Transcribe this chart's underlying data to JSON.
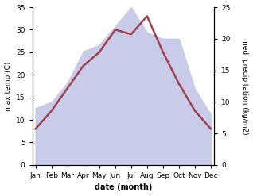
{
  "months": [
    "Jan",
    "Feb",
    "Mar",
    "Apr",
    "May",
    "Jun",
    "Jul",
    "Aug",
    "Sep",
    "Oct",
    "Nov",
    "Dec"
  ],
  "temp_max": [
    8,
    12,
    17,
    22,
    25,
    30,
    29,
    33,
    25,
    18,
    12,
    8
  ],
  "precipitation": [
    9,
    10,
    13,
    18,
    19,
    22,
    25,
    21,
    20,
    20,
    12,
    8
  ],
  "temp_color": "#a04050",
  "precip_fill_color": "#c8cce8",
  "ylabel_left": "max temp (C)",
  "ylabel_right": "med. precipitation (kg/m2)",
  "xlabel": "date (month)",
  "ylim_left": [
    0,
    35
  ],
  "ylim_right": [
    0,
    25
  ],
  "bg_color": "#ffffff",
  "left_yticks": [
    0,
    5,
    10,
    15,
    20,
    25,
    30,
    35
  ],
  "right_yticks": [
    0,
    5,
    10,
    15,
    20,
    25
  ],
  "linewidth": 1.8,
  "xlabel_fontsize": 7,
  "ylabel_fontsize": 6.5,
  "tick_fontsize": 6.5
}
